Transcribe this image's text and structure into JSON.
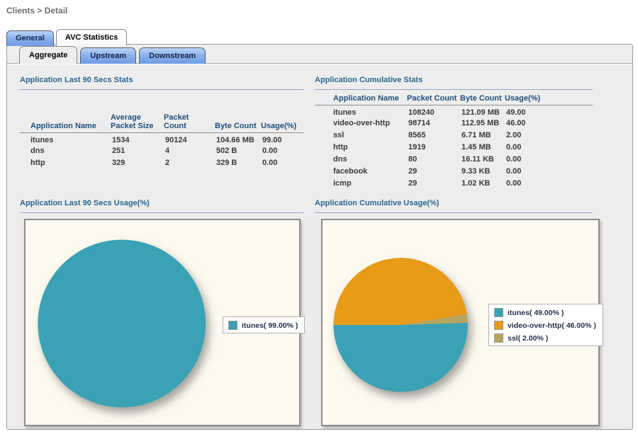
{
  "breadcrumb": "Clients > Detail",
  "tabs": [
    {
      "label": "General",
      "active": false
    },
    {
      "label": "AVC Statistics",
      "active": true
    }
  ],
  "subtabs": [
    {
      "label": "Aggregate",
      "active": true
    },
    {
      "label": "Upstream",
      "active": false
    },
    {
      "label": "Downstream",
      "active": false
    }
  ],
  "tables": {
    "last90": {
      "title": "Application Last 90 Secs Stats",
      "columns": [
        "Application Name",
        "Average\nPacket Size",
        "Packet Count",
        "Byte Count",
        "Usage(%)"
      ],
      "rows": [
        [
          "itunes",
          "1534",
          "90124",
          "104.66 MB",
          "99.00"
        ],
        [
          "dns",
          "251",
          "4",
          "502 B",
          "0.00"
        ],
        [
          "http",
          "329",
          "2",
          "329 B",
          "0.00"
        ]
      ]
    },
    "cumulative": {
      "title": "Application Cumulative Stats",
      "columns": [
        "Application Name",
        "Packet Count",
        "Byte Count",
        "Usage(%)"
      ],
      "rows": [
        [
          "itunes",
          "108240",
          "121.09 MB",
          "49.00"
        ],
        [
          "video-over-http",
          "98714",
          "112.95 MB",
          "46.00"
        ],
        [
          "ssl",
          "8565",
          "6.71 MB",
          "2.00"
        ],
        [
          "http",
          "1919",
          "1.45 MB",
          "0.00"
        ],
        [
          "dns",
          "80",
          "16.11 KB",
          "0.00"
        ],
        [
          "facebook",
          "29",
          "9.33 KB",
          "0.00"
        ],
        [
          "icmp",
          "29",
          "1.02 KB",
          "0.00"
        ]
      ]
    }
  },
  "chart_data": [
    {
      "type": "pie",
      "title": "Application Last 90 Secs Usage(%)",
      "legend_position": "right",
      "slices": [
        {
          "name": "itunes",
          "value": 99.0,
          "color": "#3aa2b4",
          "legend_label": "itunes( 99.00% )"
        }
      ]
    },
    {
      "type": "pie",
      "title": "Application Cumulative Usage(%)",
      "legend_position": "right",
      "slices": [
        {
          "name": "itunes",
          "value": 49.0,
          "color": "#3aa2b4",
          "legend_label": "itunes( 49.00% )"
        },
        {
          "name": "video-over-http",
          "value": 46.0,
          "color": "#e79b18",
          "legend_label": "video-over-http( 46.00% )"
        },
        {
          "name": "ssl",
          "value": 2.0,
          "color": "#b5a55f",
          "legend_label": "ssl( 2.00% )"
        }
      ]
    }
  ],
  "colors": {
    "teal": "#3aa2b4",
    "orange": "#e79b18",
    "tan": "#b5a55f",
    "panel_bg": "#ededed",
    "chart_bg": "#fcf9ee",
    "section_title": "#2a678f",
    "table_header": "#21507a",
    "tab_blue": "#8cb2ee"
  }
}
